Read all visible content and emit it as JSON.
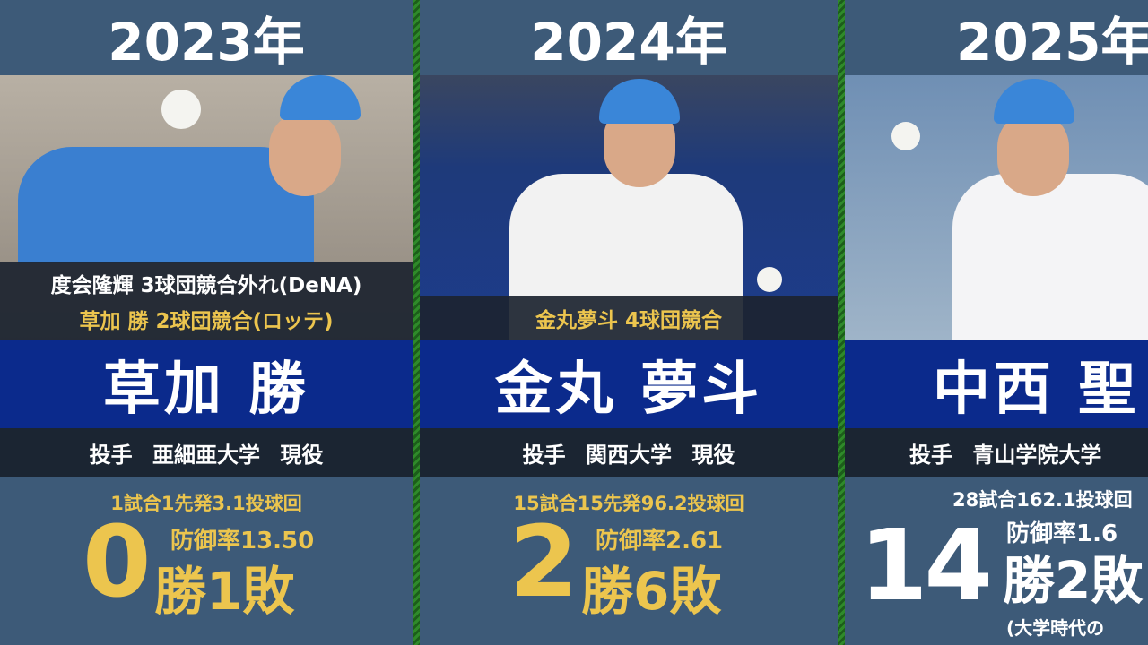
{
  "columns": [
    {
      "year": "2023年",
      "notes": [
        "度会隆輝 3球団競合外れ(DeNA)",
        "草加 勝 2球団競合(ロッテ)"
      ],
      "name": "草加 勝",
      "info": "投手 亜細亜大学 現役",
      "games": "1試合1先発3.1投球回",
      "wins": "0",
      "era": "防御率13.50",
      "wl_rest": "勝1敗"
    },
    {
      "year": "2024年",
      "notes": [
        "金丸夢斗 4球団競合"
      ],
      "name": "金丸 夢斗",
      "info": "投手 関西大学 現役",
      "games": "15試合15先発96.2投球回",
      "wins": "2",
      "era": "防御率2.61",
      "wl_rest": "勝6敗"
    },
    {
      "year": "2025年",
      "name": "中西 聖",
      "info": "投手 青山学院大学",
      "games": "28試合162.1投球回",
      "wins": "14",
      "era": "防御率1.6",
      "wl_rest": "勝2敗",
      "footnote": "(大学時代の"
    }
  ],
  "colors": {
    "panel": "#3d5a78",
    "name_band": "#0b2a8c",
    "gold": "#ecc54e",
    "divider": "#2f8a2a"
  }
}
